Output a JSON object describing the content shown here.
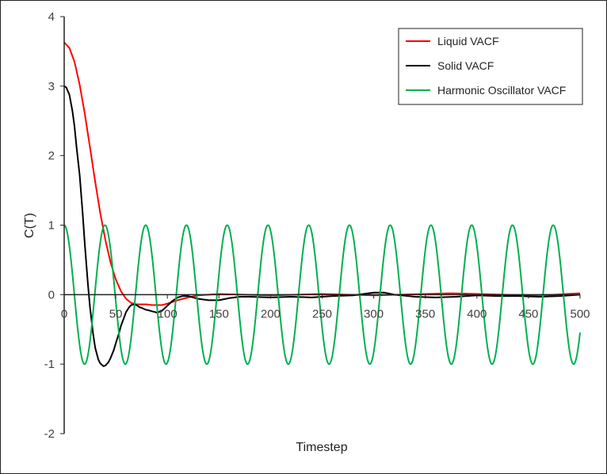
{
  "chart_data": {
    "type": "line",
    "title": "",
    "xlabel": "Timestep",
    "ylabel": "C(T)",
    "xlim": [
      0,
      500
    ],
    "ylim": [
      -2,
      4
    ],
    "xticks": [
      0,
      50,
      100,
      150,
      200,
      250,
      300,
      350,
      400,
      450,
      500
    ],
    "yticks": [
      -2,
      -1,
      0,
      1,
      2,
      3,
      4
    ],
    "grid": false,
    "legend_position": "top-right",
    "series": [
      {
        "name": "Liquid VACF",
        "color": "#ff0000",
        "x": [
          0,
          5,
          10,
          15,
          20,
          25,
          30,
          35,
          40,
          45,
          50,
          55,
          60,
          65,
          70,
          75,
          80,
          85,
          90,
          95,
          100,
          110,
          120,
          130,
          140,
          150,
          175,
          200,
          225,
          250,
          275,
          300,
          325,
          350,
          375,
          400,
          425,
          450,
          475,
          500
        ],
        "y": [
          3.63,
          3.55,
          3.35,
          3.02,
          2.6,
          2.12,
          1.63,
          1.17,
          0.78,
          0.46,
          0.22,
          0.05,
          -0.06,
          -0.12,
          -0.14,
          -0.14,
          -0.14,
          -0.15,
          -0.15,
          -0.15,
          -0.13,
          -0.08,
          -0.04,
          -0.01,
          0.0,
          0.01,
          0.0,
          -0.01,
          0.0,
          0.01,
          0.0,
          -0.01,
          0.0,
          0.01,
          0.02,
          0.01,
          0.0,
          -0.01,
          0.0,
          0.02
        ]
      },
      {
        "name": "Solid VACF",
        "color": "#000000",
        "x": [
          0,
          2,
          5,
          8,
          10,
          12,
          15,
          18,
          20,
          23,
          25,
          28,
          30,
          33,
          35,
          38,
          40,
          43,
          45,
          48,
          50,
          53,
          55,
          58,
          60,
          63,
          65,
          68,
          70,
          73,
          75,
          78,
          80,
          83,
          85,
          88,
          90,
          95,
          100,
          105,
          110,
          115,
          120,
          125,
          130,
          140,
          150,
          160,
          170,
          180,
          200,
          220,
          240,
          260,
          280,
          300,
          310,
          320,
          340,
          360,
          380,
          400,
          420,
          440,
          460,
          480,
          500
        ],
        "y": [
          3.0,
          2.98,
          2.88,
          2.64,
          2.42,
          2.12,
          1.72,
          1.15,
          0.72,
          0.15,
          -0.18,
          -0.56,
          -0.76,
          -0.93,
          -0.99,
          -1.03,
          -1.02,
          -0.97,
          -0.91,
          -0.8,
          -0.7,
          -0.56,
          -0.45,
          -0.33,
          -0.25,
          -0.18,
          -0.15,
          -0.14,
          -0.15,
          -0.18,
          -0.19,
          -0.21,
          -0.22,
          -0.23,
          -0.24,
          -0.25,
          -0.26,
          -0.23,
          -0.16,
          -0.09,
          -0.04,
          -0.02,
          -0.02,
          -0.04,
          -0.06,
          -0.08,
          -0.08,
          -0.05,
          -0.03,
          -0.03,
          -0.04,
          -0.03,
          -0.04,
          -0.02,
          -0.01,
          0.03,
          0.03,
          0.0,
          -0.03,
          -0.04,
          -0.03,
          -0.01,
          -0.02,
          -0.02,
          -0.03,
          -0.02,
          0.0
        ]
      },
      {
        "name": "Harmonic Oscillator VACF",
        "color": "#00b050",
        "function": "cos",
        "amplitude": 1,
        "period": 39.5,
        "x_range": [
          0,
          500
        ]
      }
    ]
  }
}
